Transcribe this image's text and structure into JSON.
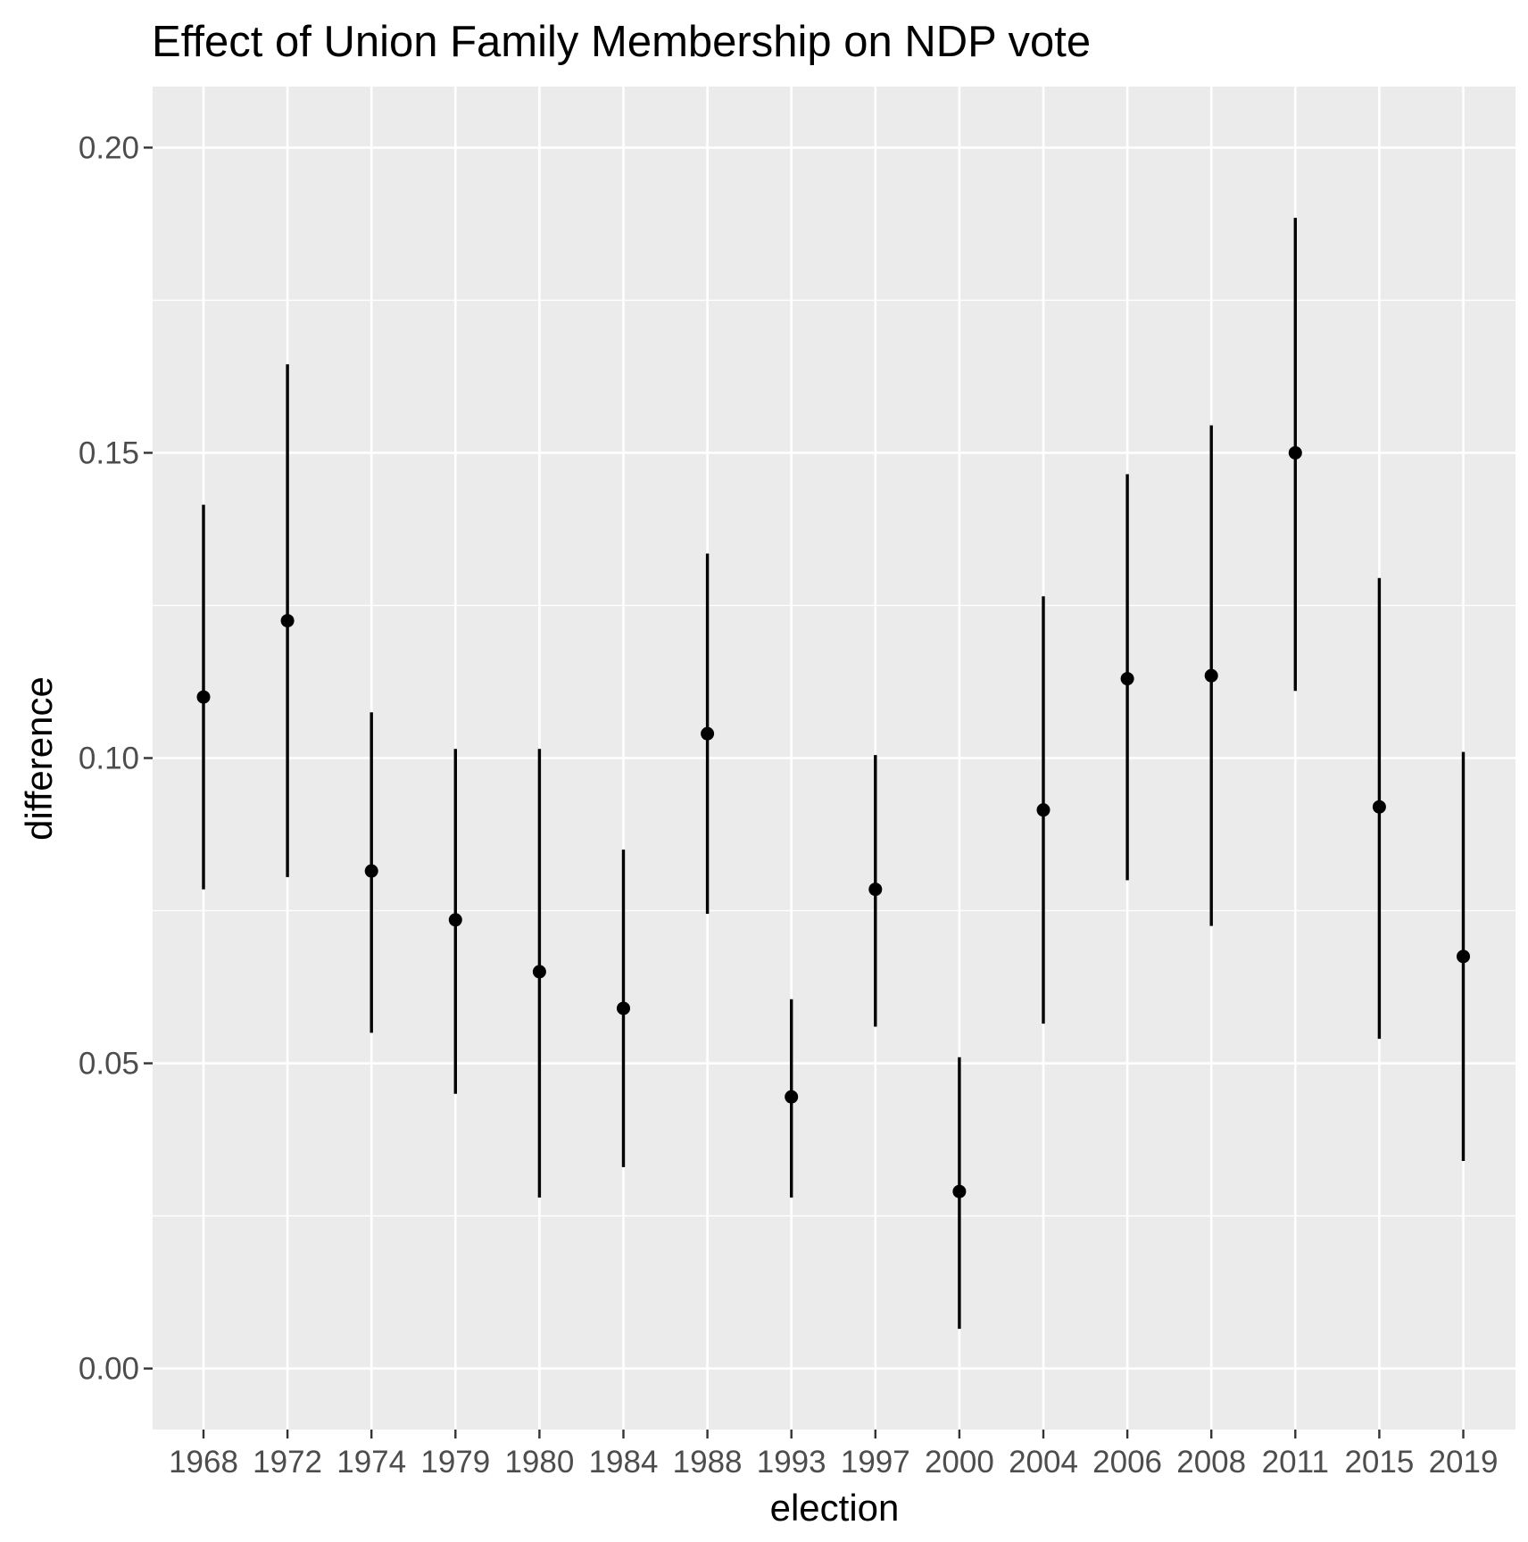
{
  "chart_data": {
    "type": "scatter",
    "subtype": "pointrange",
    "title": "Effect of Union Family Membership on NDP vote",
    "xlabel": "election",
    "ylabel": "difference",
    "categories": [
      "1968",
      "1972",
      "1974",
      "1979",
      "1980",
      "1984",
      "1988",
      "1993",
      "1997",
      "2000",
      "2004",
      "2006",
      "2008",
      "2011",
      "2015",
      "2019"
    ],
    "series": [
      {
        "values": [
          0.11,
          0.1225,
          0.0815,
          0.0735,
          0.065,
          0.059,
          0.104,
          0.0445,
          0.0785,
          0.029,
          0.0915,
          0.113,
          0.1135,
          0.15,
          0.092,
          0.0675
        ],
        "lower": [
          0.0785,
          0.0805,
          0.055,
          0.045,
          0.028,
          0.033,
          0.0745,
          0.028,
          0.056,
          0.0065,
          0.0565,
          0.08,
          0.0725,
          0.111,
          0.054,
          0.034
        ],
        "upper": [
          0.1415,
          0.1645,
          0.1075,
          0.1015,
          0.1015,
          0.085,
          0.1335,
          0.0605,
          0.1005,
          0.051,
          0.1265,
          0.1465,
          0.1545,
          0.1885,
          0.1295,
          0.101
        ]
      }
    ],
    "ylim": [
      -0.01,
      0.21
    ],
    "yticks": [
      "0.00",
      "0.05",
      "0.10",
      "0.15",
      "0.20"
    ],
    "ytick_values": [
      0.0,
      0.05,
      0.1,
      0.15,
      0.2
    ],
    "grid": true,
    "legend": "none",
    "colors": {
      "panel_background": "#ebebeb",
      "grid_line": "#ffffff",
      "point": "#000000",
      "errorbar": "#000000",
      "tick_label": "#4d4d4d",
      "axis_tick": "#333333"
    }
  }
}
